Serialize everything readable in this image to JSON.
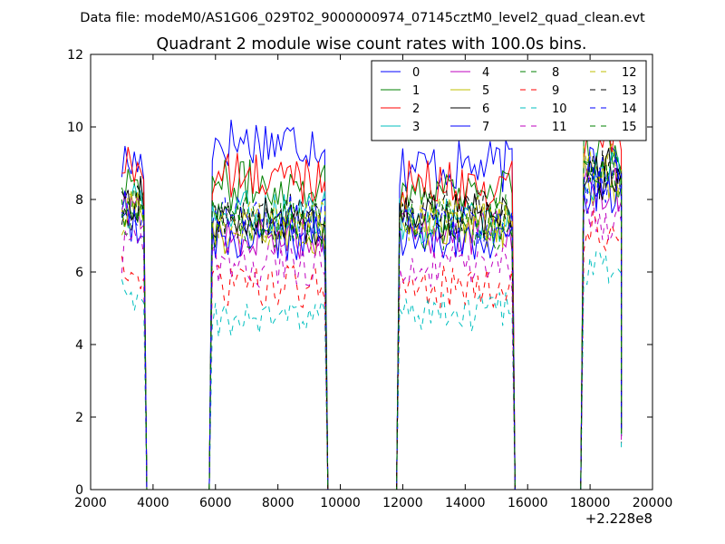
{
  "header": {
    "datafile": "Data file: modeM0/AS1G06_029T02_9000000974_07145cztM0_level2_quad_clean.evt"
  },
  "chart_data": {
    "type": "line",
    "title": "Quadrant 2 module wise count rates with 100.0s bins.",
    "xlabel": "",
    "ylabel": "",
    "x_offset_label": "+2.228e8",
    "xlim": [
      2000,
      20000
    ],
    "ylim": [
      0,
      12
    ],
    "xticks": [
      2000,
      4000,
      6000,
      8000,
      10000,
      12000,
      14000,
      16000,
      18000,
      20000
    ],
    "yticks": [
      0,
      2,
      4,
      6,
      8,
      10,
      12
    ],
    "grid": false,
    "legend_position": "top-right",
    "segments": [
      [
        3000,
        3700
      ],
      [
        5900,
        9500
      ],
      [
        11900,
        15500
      ],
      [
        17800,
        19000
      ]
    ],
    "series": [
      {
        "name": "0",
        "color": "#0000ff",
        "dash": "solid",
        "values": [
          9.0,
          9.6,
          8.9,
          9.2
        ]
      },
      {
        "name": "1",
        "color": "#008000",
        "dash": "solid",
        "values": [
          8.6,
          8.4,
          8.3,
          9.2
        ]
      },
      {
        "name": "2",
        "color": "#ff0000",
        "dash": "solid",
        "values": [
          8.9,
          8.6,
          8.4,
          9.7
        ]
      },
      {
        "name": "3",
        "color": "#00bfbf",
        "dash": "solid",
        "values": [
          7.8,
          7.6,
          7.4,
          8.6
        ]
      },
      {
        "name": "4",
        "color": "#bf00bf",
        "dash": "solid",
        "values": [
          7.6,
          7.0,
          7.1,
          8.2
        ]
      },
      {
        "name": "5",
        "color": "#bfbf00",
        "dash": "solid",
        "values": [
          7.6,
          7.1,
          7.2,
          8.5
        ]
      },
      {
        "name": "6",
        "color": "#000000",
        "dash": "solid",
        "values": [
          8.0,
          7.4,
          7.5,
          8.7
        ]
      },
      {
        "name": "7",
        "color": "#0000ff",
        "dash": "solid",
        "values": [
          7.2,
          6.9,
          6.9,
          8.2
        ]
      },
      {
        "name": "8",
        "color": "#008000",
        "dash": "dashed",
        "values": [
          7.6,
          7.3,
          7.2,
          8.6
        ]
      },
      {
        "name": "9",
        "color": "#ff0000",
        "dash": "dashed",
        "values": [
          6.0,
          5.6,
          5.6,
          7.1
        ]
      },
      {
        "name": "10",
        "color": "#00bfbf",
        "dash": "dashed",
        "values": [
          5.3,
          4.7,
          4.9,
          6.0
        ]
      },
      {
        "name": "11",
        "color": "#bf00bf",
        "dash": "dashed",
        "values": [
          6.6,
          6.2,
          6.1,
          7.4
        ]
      },
      {
        "name": "12",
        "color": "#bfbf00",
        "dash": "dashed",
        "values": [
          7.6,
          7.4,
          7.5,
          8.8
        ]
      },
      {
        "name": "13",
        "color": "#000000",
        "dash": "dashed",
        "values": [
          7.8,
          7.5,
          7.6,
          8.7
        ]
      },
      {
        "name": "14",
        "color": "#0000ff",
        "dash": "dashed",
        "values": [
          7.9,
          7.5,
          7.4,
          8.6
        ]
      },
      {
        "name": "15",
        "color": "#008000",
        "dash": "dashed",
        "values": [
          7.9,
          7.5,
          7.5,
          8.6
        ]
      }
    ]
  }
}
